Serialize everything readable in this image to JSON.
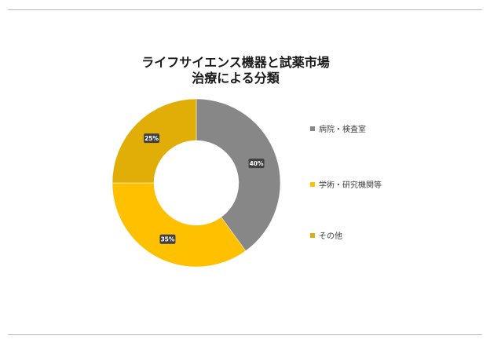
{
  "chart_data": {
    "type": "pie",
    "donut": true,
    "title_lines": [
      "ライフサイエンス機器と試薬市場",
      "治療による分類"
    ],
    "slices": [
      {
        "label": "病院・検査室",
        "value": 40,
        "display": "40%",
        "color": "#878787"
      },
      {
        "label": "学術・研究機関等",
        "value": 35,
        "display": "35%",
        "color": "#FFC000"
      },
      {
        "label": "その他",
        "value": 25,
        "display": "25%",
        "color": "#E0AE07"
      }
    ],
    "legend_position": "right"
  }
}
